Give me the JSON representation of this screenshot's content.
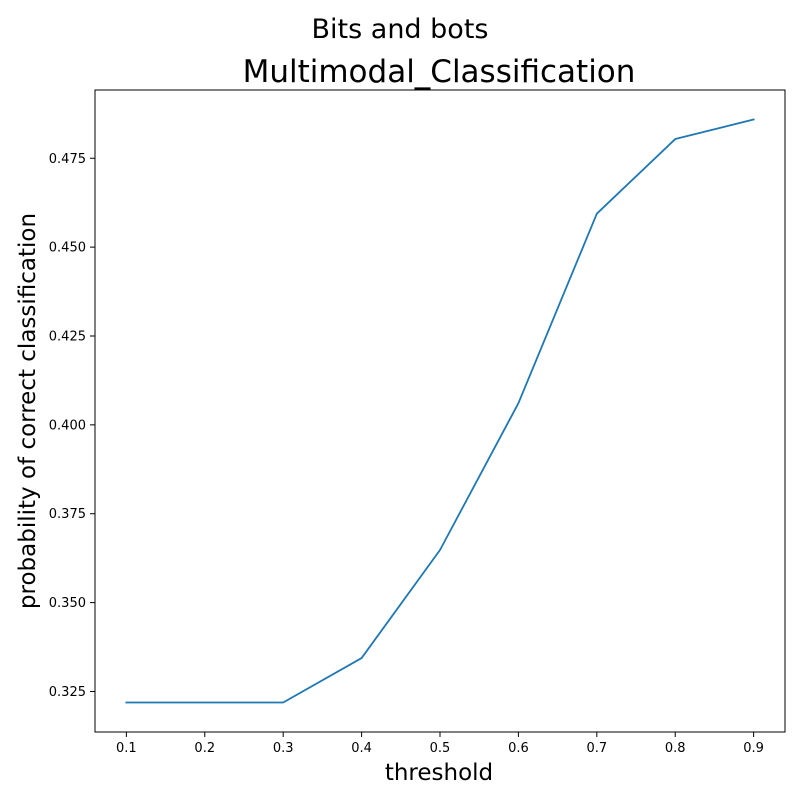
{
  "figure": {
    "suptitle": "Bits and bots"
  },
  "chart_data": {
    "type": "line",
    "title": "Multimodal_Classification",
    "xlabel": "threshold",
    "ylabel": "probability of correct classification",
    "x": [
      0.1,
      0.2,
      0.3,
      0.4,
      0.5,
      0.6,
      0.7,
      0.8,
      0.9
    ],
    "series": [
      {
        "values": [
          0.3219,
          0.3219,
          0.3219,
          0.3344,
          0.3648,
          0.4061,
          0.4594,
          0.4804,
          0.4859
        ],
        "color": "#1f77b4"
      }
    ],
    "xticks": [
      "0.1",
      "0.2",
      "0.3",
      "0.4",
      "0.5",
      "0.6",
      "0.7",
      "0.8",
      "0.9"
    ],
    "yticks": [
      "0.325",
      "0.350",
      "0.375",
      "0.400",
      "0.425",
      "0.450",
      "0.475"
    ],
    "xlim": [
      0.06,
      0.94
    ],
    "ylim": [
      0.3136,
      0.4942
    ],
    "grid": false,
    "legend": "none"
  }
}
